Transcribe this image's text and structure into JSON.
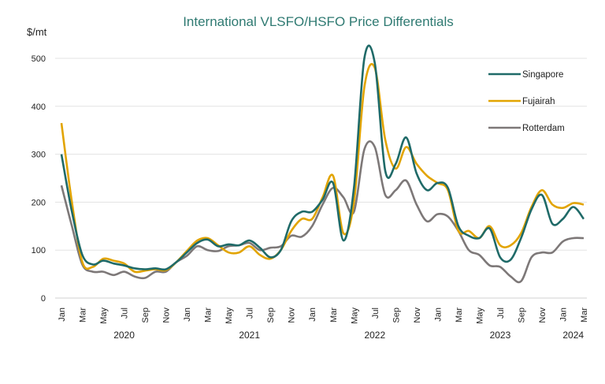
{
  "chart_data": {
    "type": "line",
    "title": "International VLSFO/HSFO Price Differentials",
    "ylabel": "$/mt",
    "xlabel": "",
    "ylim": [
      0,
      500
    ],
    "yticks": [
      0,
      100,
      200,
      300,
      400,
      500
    ],
    "grid": true,
    "legend_position": "top-right",
    "x_tick_labels": [
      "Jan",
      "Mar",
      "May",
      "Jul",
      "Sep",
      "Nov",
      "Jan",
      "Mar",
      "May",
      "Jul",
      "Sep",
      "Nov",
      "Jan",
      "Mar",
      "May",
      "Jul",
      "Sep",
      "Nov",
      "Jan",
      "Mar",
      "May",
      "Jul",
      "Sep",
      "Nov",
      "Jan",
      "Mar"
    ],
    "year_labels": [
      "2020",
      "2021",
      "2022",
      "2023",
      "2024"
    ],
    "x_range": [
      "Jan 2020",
      "Mar 2024"
    ],
    "frequency": "monthly",
    "series": [
      {
        "name": "Singapore",
        "color": "#1f6a68",
        "values": [
          300,
          180,
          90,
          70,
          78,
          72,
          68,
          62,
          60,
          62,
          60,
          75,
          95,
          115,
          122,
          108,
          112,
          110,
          120,
          105,
          85,
          100,
          160,
          180,
          180,
          205,
          240,
          120,
          230,
          500,
          490,
          265,
          280,
          335,
          260,
          225,
          240,
          230,
          150,
          130,
          125,
          145,
          85,
          80,
          125,
          185,
          215,
          155,
          165,
          190,
          165
        ]
      },
      {
        "name": "Fujairah",
        "color": "#e2a400",
        "values": [
          365,
          200,
          75,
          65,
          82,
          78,
          72,
          55,
          57,
          60,
          58,
          75,
          98,
          120,
          125,
          110,
          95,
          95,
          108,
          90,
          82,
          100,
          140,
          165,
          165,
          210,
          255,
          135,
          200,
          440,
          480,
          330,
          270,
          315,
          280,
          255,
          240,
          225,
          140,
          140,
          125,
          150,
          110,
          110,
          135,
          190,
          225,
          195,
          188,
          198,
          195
        ]
      },
      {
        "name": "Rotterdam",
        "color": "#7d7878",
        "values": [
          235,
          150,
          70,
          55,
          55,
          48,
          55,
          45,
          42,
          55,
          55,
          75,
          88,
          108,
          100,
          98,
          108,
          110,
          115,
          100,
          105,
          108,
          130,
          128,
          150,
          195,
          230,
          210,
          180,
          310,
          315,
          215,
          225,
          245,
          195,
          160,
          175,
          170,
          140,
          100,
          90,
          68,
          65,
          45,
          35,
          85,
          95,
          95,
          118,
          125,
          125
        ]
      }
    ]
  }
}
